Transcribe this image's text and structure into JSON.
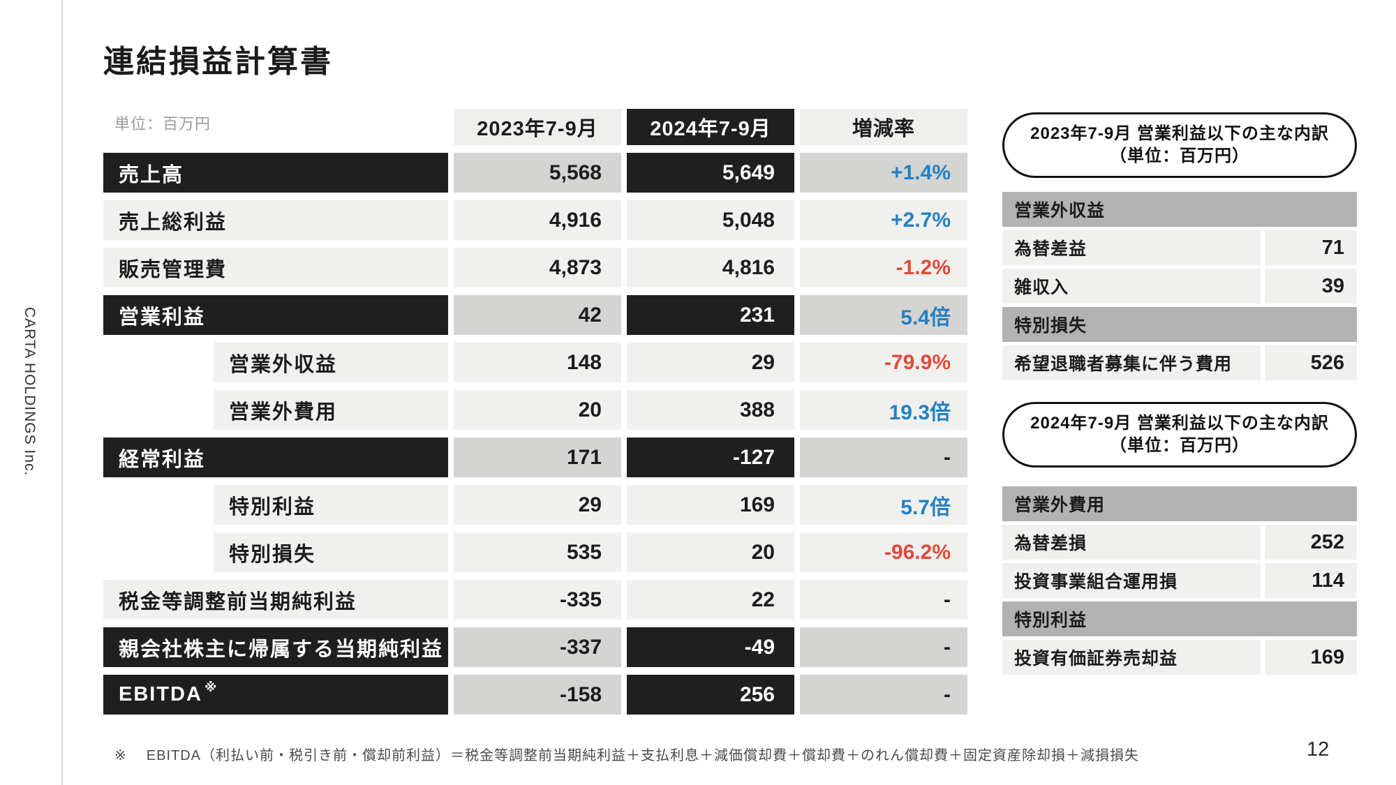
{
  "page": {
    "title": "連結損益計算書",
    "unit_label": "単位：百万円",
    "company_vertical": "CARTA HOLDINGS Inc.",
    "page_number": "12",
    "footnote_marker": "※",
    "footnote": "EBITDA（利払い前・税引き前・償却前利益）＝税金等調整前当期純利益＋支払利息＋減価償却費＋償却費＋のれん償却費＋固定資産除却損＋減損損失"
  },
  "colors": {
    "positive_blue": "#2380c2",
    "negative_red": "#e04b39",
    "row_dark": "#1f1f1f",
    "cell_light": "#f0f0ef",
    "cell_gray": "#d4d4d3",
    "section_gray": "#b2b2b2"
  },
  "income_table": {
    "columns": [
      "2023年7-9月",
      "2024年7-9月",
      "増減率"
    ],
    "rows": [
      {
        "label": "売上高",
        "y2023": "5,568",
        "y2024": "5,649",
        "rate": "+1.4%"
      },
      {
        "label": "売上総利益",
        "y2023": "4,916",
        "y2024": "5,048",
        "rate": "+2.7%"
      },
      {
        "label": "販売管理費",
        "y2023": "4,873",
        "y2024": "4,816",
        "rate": "-1.2%"
      },
      {
        "label": "営業利益",
        "y2023": "42",
        "y2024": "231",
        "rate": "5.4倍"
      },
      {
        "label": "営業外収益",
        "y2023": "148",
        "y2024": "29",
        "rate": "-79.9%"
      },
      {
        "label": "営業外費用",
        "y2023": "20",
        "y2024": "388",
        "rate": "19.3倍"
      },
      {
        "label": "経常利益",
        "y2023": "171",
        "y2024": "-127",
        "rate": "-"
      },
      {
        "label": "特別利益",
        "y2023": "29",
        "y2024": "169",
        "rate": "5.7倍"
      },
      {
        "label": "特別損失",
        "y2023": "535",
        "y2024": "20",
        "rate": "-96.2%"
      },
      {
        "label": "税金等調整前当期純利益",
        "y2023": "-335",
        "y2024": "22",
        "rate": "-"
      },
      {
        "label": "親会社株主に帰属する当期純利益",
        "y2023": "-337",
        "y2024": "-49",
        "rate": "-"
      },
      {
        "label": "EBITDA",
        "label_sup": "※",
        "y2023": "-158",
        "y2024": "256",
        "rate": "-"
      }
    ]
  },
  "breakdown_2023": {
    "title_line1": "2023年7-9月 営業利益以下の主な内訳",
    "title_line2": "（単位：百万円）",
    "section1_header": "営業外収益",
    "row1_label": "為替差益",
    "row1_value": "71",
    "row2_label": "雑収入",
    "row2_value": "39",
    "section2_header": "特別損失",
    "row3_label": "希望退職者募集に伴う費用",
    "row3_value": "526"
  },
  "breakdown_2024": {
    "title_line1": "2024年7-9月 営業利益以下の主な内訳",
    "title_line2": "（単位：百万円）",
    "section1_header": "営業外費用",
    "row1_label": "為替差損",
    "row1_value": "252",
    "row2_label": "投資事業組合運用損",
    "row2_value": "114",
    "section2_header": "特別利益",
    "row3_label": "投資有価証券売却益",
    "row3_value": "169"
  }
}
